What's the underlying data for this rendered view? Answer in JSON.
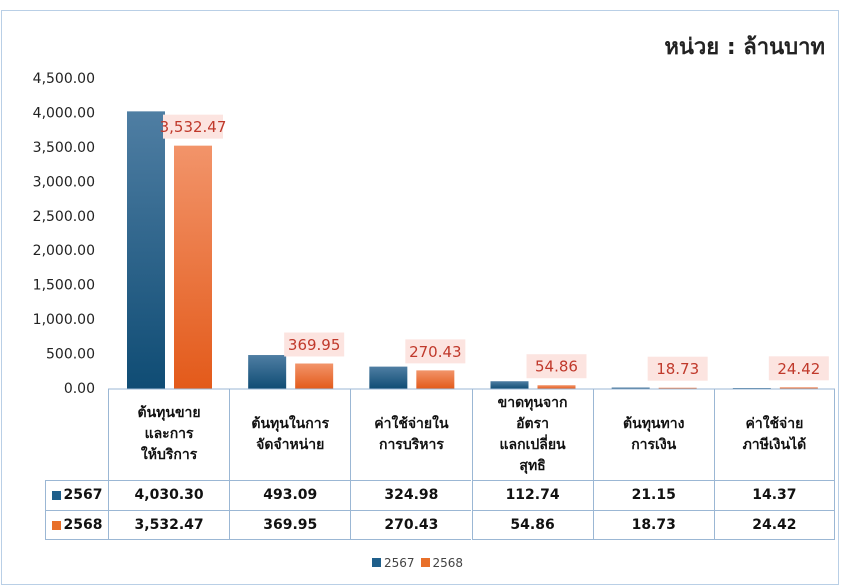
{
  "chart_data": {
    "type": "bar",
    "title": "หน่วย : ล้านบาท",
    "categories": [
      "ต้นทุนขาย\nและการ\nให้บริการ",
      "ต้นทุนในการ\nจัดจำหน่าย",
      "ค่าใช้จ่ายใน\nการบริหาร",
      "ขาดทุนจาก\nอัตรา\nแลกเปลี่ยน\nสุทธิ",
      "ต้นทุนทาง\nการเงิน",
      "ค่าใช้จ่าย\nภาษีเงินได้"
    ],
    "series": [
      {
        "name": "2567",
        "color": "#1f5f8b",
        "values": [
          4030.3,
          493.09,
          324.98,
          112.74,
          21.15,
          14.37
        ],
        "value_labels": [
          "4,030.30",
          "493.09",
          "324.98",
          "112.74",
          "21.15",
          "14.37"
        ]
      },
      {
        "name": "2568",
        "color": "#e8702a",
        "values": [
          3532.47,
          369.95,
          270.43,
          54.86,
          18.73,
          24.42
        ],
        "value_labels": [
          "3,532.47",
          "369.95",
          "270.43",
          "54.86",
          "18.73",
          "24.42"
        ]
      }
    ],
    "ylim": [
      0,
      4500
    ],
    "yticks": [
      {
        "value": 0,
        "label": "0.00"
      },
      {
        "value": 500,
        "label": "500.00"
      },
      {
        "value": 1000,
        "label": "1,000.00"
      },
      {
        "value": 1500,
        "label": "1,500.00"
      },
      {
        "value": 2000,
        "label": "2,000.00"
      },
      {
        "value": 2500,
        "label": "2,500.00"
      },
      {
        "value": 3000,
        "label": "3,000.00"
      },
      {
        "value": 3500,
        "label": "3,500.00"
      },
      {
        "value": 4000,
        "label": "4,000.00"
      },
      {
        "value": 4500,
        "label": "4,500.00"
      }
    ],
    "data_labels_series": 1,
    "legend": "bottom"
  }
}
